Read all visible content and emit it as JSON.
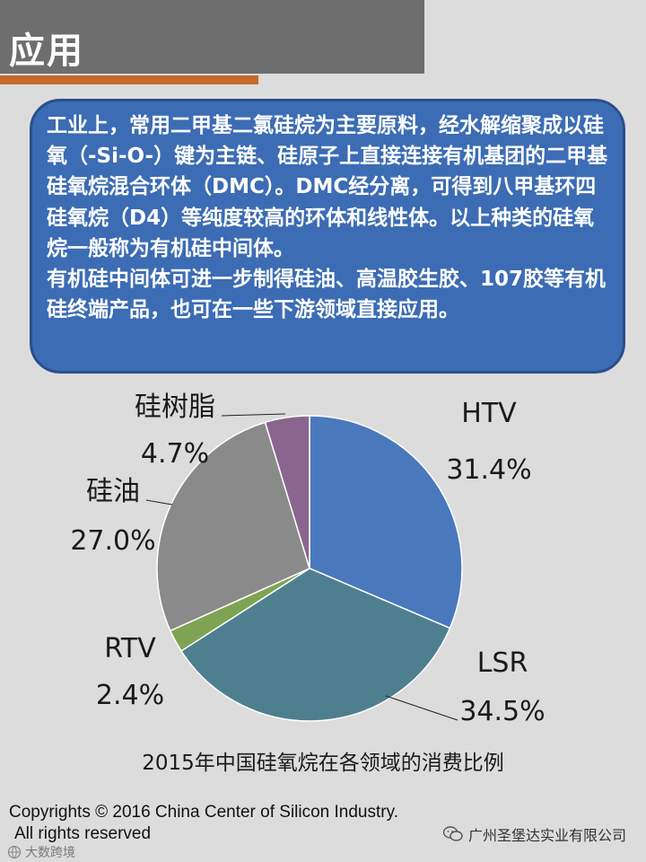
{
  "header": {
    "title": "应用"
  },
  "info_box": {
    "paragraph1": "工业上，常用二甲基二氯硅烷为主要原料，经水解缩聚成以硅氧（-Si-O-）键为主链、硅原子上直接连接有机基团的二甲基硅氧烷混合环体（DMC）。DMC经分离，可得到八甲基环四硅氧烷（D4）等纯度较高的环体和线性体。以上种类的硅氧烷一般称为有机硅中间体。",
    "paragraph2": "有机硅中间体可进一步制得硅油、高温胶生胶、107胶等有机硅终端产品，也可在一些下游领域直接应用。"
  },
  "chart_data": {
    "type": "pie",
    "title": "2015年中国硅氧烷在各领域的消费比例",
    "slices": [
      {
        "label": "HTV",
        "value": 31.4,
        "value_label": "31.4%",
        "color": "#4a78bd"
      },
      {
        "label": "LSR",
        "value": 34.5,
        "value_label": "34.5%",
        "color": "#4e7f8f"
      },
      {
        "label": "RTV",
        "value": 2.4,
        "value_label": "2.4%",
        "color": "#7ea453"
      },
      {
        "label": "硅油",
        "value": 27.0,
        "value_label": "27.0%",
        "color": "#8a8a8a"
      },
      {
        "label": "硅树脂",
        "value": 4.7,
        "value_label": "4.7%",
        "color": "#8a668f"
      }
    ]
  },
  "footer": {
    "copyright_line1": "Copyrights © 2016 China Center of Silicon Industry.",
    "copyright_line2": "All rights reserved",
    "wechat_source": "广州圣堡达实业有限公司",
    "site_watermark": "大数跨境"
  },
  "colors": {
    "header_bg": "#6e6e6e",
    "header_accent": "#c46a2a",
    "box_bg": "#3c6cb4",
    "page_bg": "#dcdcdc"
  }
}
